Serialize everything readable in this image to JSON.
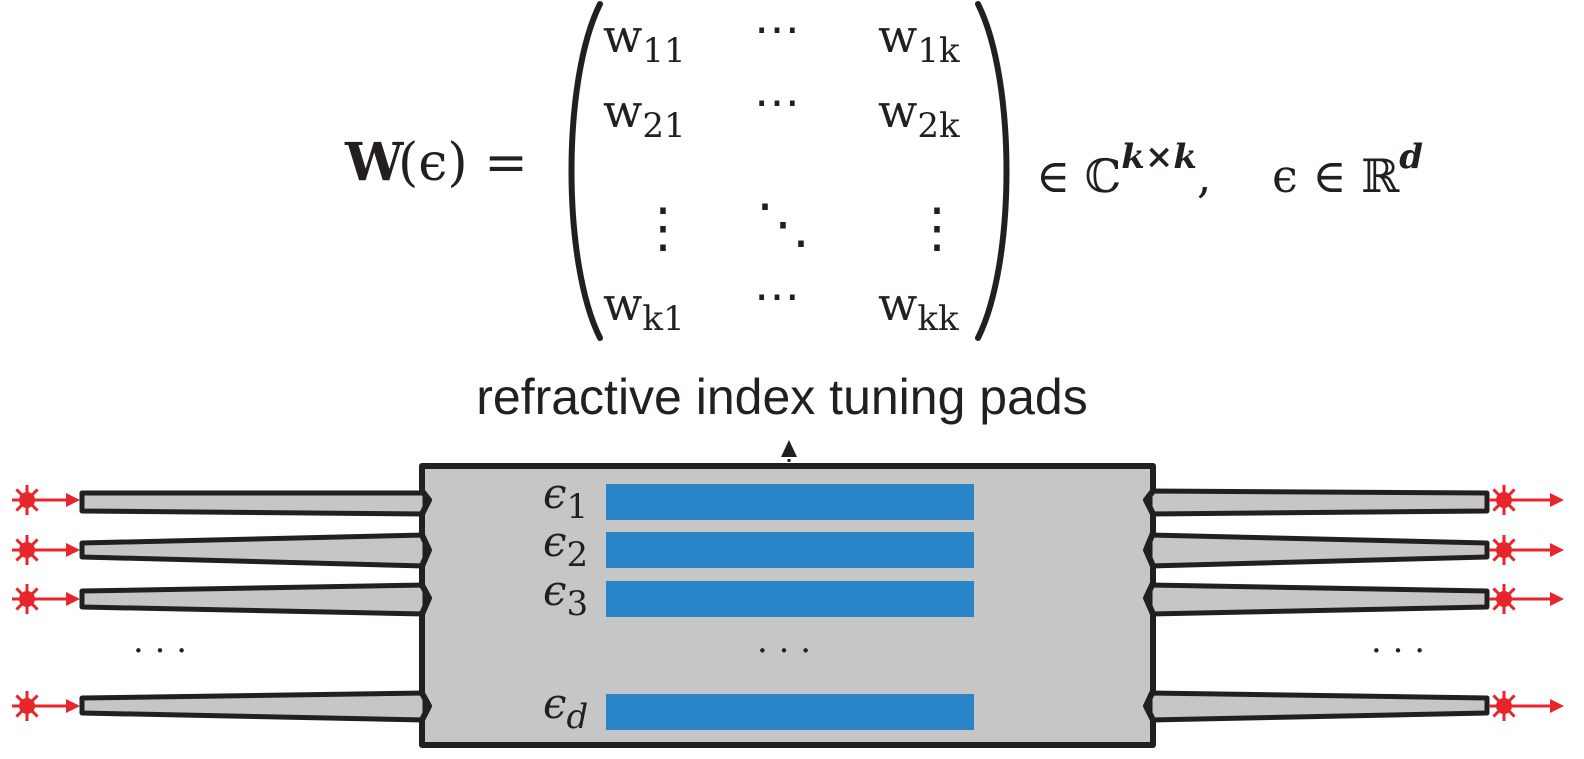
{
  "equation": {
    "lhs_bold": "W",
    "lhs_arg": "(ϵ) =",
    "matrix": {
      "rows": [
        [
          {
            "base": "w",
            "sub": "11"
          },
          {
            "dots": "⋯"
          },
          {
            "base": "w",
            "sub": "1k"
          }
        ],
        [
          {
            "base": "w",
            "sub": "21"
          },
          {
            "dots": "⋯"
          },
          {
            "base": "w",
            "sub": "2k"
          }
        ],
        [
          {
            "dots": "⋮"
          },
          {
            "dots": "⋱"
          },
          {
            "dots": "⋮"
          }
        ],
        [
          {
            "base": "w",
            "sub": "k1"
          },
          {
            "dots": "⋯"
          },
          {
            "base": "w",
            "sub": "kk"
          }
        ]
      ]
    },
    "in_symbol": "∈ ℂ",
    "dim_sup": "k×k",
    "separator": ",",
    "eps_domain": "ϵ ∈ ℝ",
    "eps_sup": "d"
  },
  "device": {
    "caption": "refractive index tuning pads",
    "pads": [
      {
        "label": "ϵ",
        "sub": "1"
      },
      {
        "label": "ϵ",
        "sub": "2"
      },
      {
        "label": "ϵ",
        "sub": "3"
      },
      {
        "label": "ϵ",
        "sub": "d"
      }
    ],
    "ellipsis_left": "· · ·",
    "ellipsis_middle": "· · ·",
    "ellipsis_right": "· · ·"
  },
  "colors": {
    "body": "#c6c6c6",
    "outline": "#231f20",
    "pad": "#2a84c8",
    "laser": "#e6262b"
  }
}
